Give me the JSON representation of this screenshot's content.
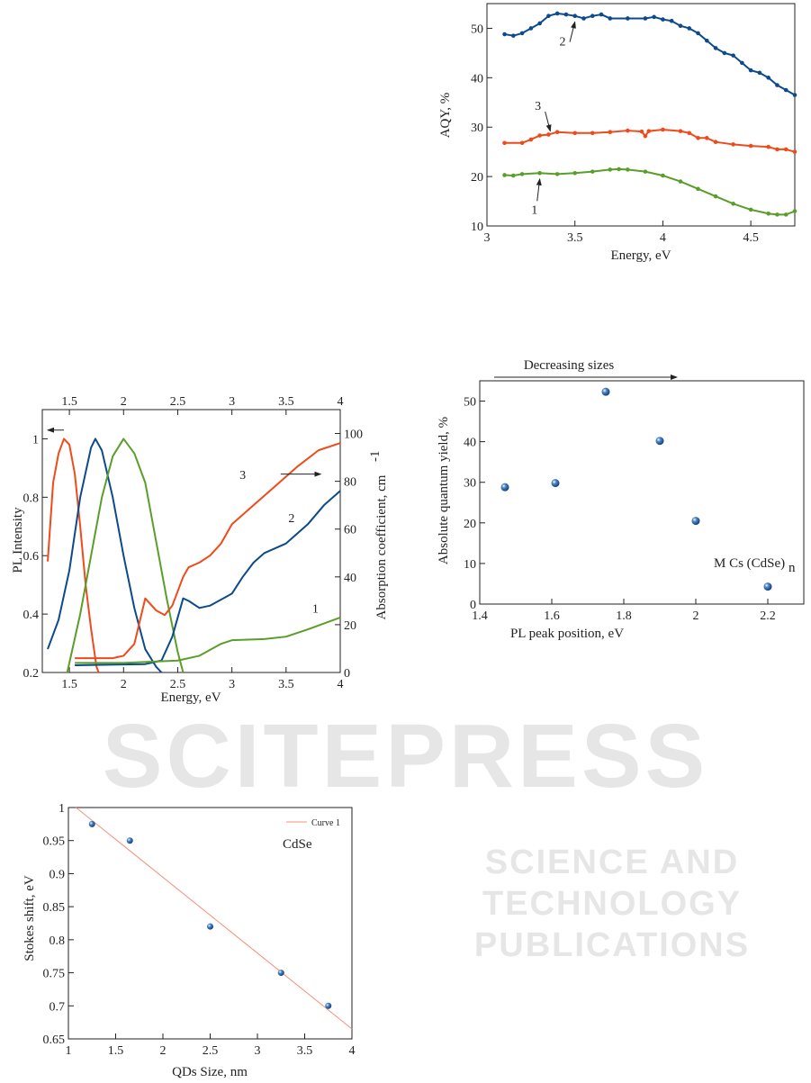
{
  "watermark": {
    "main": "SCITEPRESS",
    "sub": "SCIENCE AND TECHNOLOGY PUBLICATIONS"
  },
  "chart_data": [
    {
      "type": "line",
      "xlabel": "Energy, eV",
      "ylabel": "AQY, %",
      "xlim": [
        3,
        4.75
      ],
      "ylim": [
        10,
        55
      ],
      "xticks": [
        3,
        3.5,
        4,
        4.5
      ],
      "yticks": [
        10,
        20,
        30,
        40,
        50
      ],
      "series": [
        {
          "name": "2",
          "color": "#0d4a8c",
          "points": [
            [
              3.1,
              48.8
            ],
            [
              3.15,
              48.5
            ],
            [
              3.2,
              49
            ],
            [
              3.25,
              50
            ],
            [
              3.3,
              51
            ],
            [
              3.35,
              52.5
            ],
            [
              3.4,
              53
            ],
            [
              3.45,
              52.8
            ],
            [
              3.5,
              52.5
            ],
            [
              3.55,
              52
            ],
            [
              3.6,
              52.5
            ],
            [
              3.65,
              52.8
            ],
            [
              3.7,
              52
            ],
            [
              3.8,
              52
            ],
            [
              3.9,
              52
            ],
            [
              3.95,
              52.3
            ],
            [
              4.0,
              51.8
            ],
            [
              4.05,
              51.5
            ],
            [
              4.1,
              50.5
            ],
            [
              4.15,
              50
            ],
            [
              4.2,
              49
            ],
            [
              4.25,
              47.5
            ],
            [
              4.3,
              46
            ],
            [
              4.35,
              45
            ],
            [
              4.4,
              44.5
            ],
            [
              4.45,
              43
            ],
            [
              4.5,
              41.5
            ],
            [
              4.55,
              41
            ],
            [
              4.6,
              40
            ],
            [
              4.65,
              38.5
            ],
            [
              4.7,
              37.5
            ],
            [
              4.75,
              36.5
            ]
          ]
        },
        {
          "name": "3",
          "color": "#f04a1a",
          "points": [
            [
              3.1,
              26.8
            ],
            [
              3.2,
              26.8
            ],
            [
              3.25,
              27.5
            ],
            [
              3.3,
              28.3
            ],
            [
              3.35,
              28.5
            ],
            [
              3.4,
              29
            ],
            [
              3.5,
              28.8
            ],
            [
              3.6,
              28.8
            ],
            [
              3.7,
              29
            ],
            [
              3.8,
              29.3
            ],
            [
              3.88,
              29.1
            ],
            [
              3.9,
              28.2
            ],
            [
              3.92,
              29.2
            ],
            [
              4.0,
              29.5
            ],
            [
              4.1,
              29.2
            ],
            [
              4.15,
              28.8
            ],
            [
              4.2,
              27.8
            ],
            [
              4.25,
              27.8
            ],
            [
              4.3,
              27
            ],
            [
              4.4,
              26.5
            ],
            [
              4.5,
              26.2
            ],
            [
              4.6,
              26
            ],
            [
              4.65,
              25.5
            ],
            [
              4.7,
              25.5
            ],
            [
              4.75,
              25
            ]
          ]
        },
        {
          "name": "1",
          "color": "#5a9e2a",
          "points": [
            [
              3.1,
              20.3
            ],
            [
              3.15,
              20.2
            ],
            [
              3.2,
              20.5
            ],
            [
              3.3,
              20.7
            ],
            [
              3.4,
              20.5
            ],
            [
              3.5,
              20.7
            ],
            [
              3.6,
              21
            ],
            [
              3.7,
              21.4
            ],
            [
              3.75,
              21.5
            ],
            [
              3.8,
              21.4
            ],
            [
              3.9,
              21
            ],
            [
              4.0,
              20.2
            ],
            [
              4.1,
              19
            ],
            [
              4.2,
              17.5
            ],
            [
              4.3,
              16
            ],
            [
              4.4,
              14.5
            ],
            [
              4.5,
              13.3
            ],
            [
              4.6,
              12.5
            ],
            [
              4.65,
              12.3
            ],
            [
              4.7,
              12.3
            ],
            [
              4.75,
              13
            ]
          ]
        }
      ],
      "annotations": [
        {
          "text": "2",
          "at": [
            3.43,
            46.5
          ],
          "arrow_to": [
            3.5,
            51.3
          ]
        },
        {
          "text": "3",
          "at": [
            3.29,
            33.5
          ],
          "arrow_to": [
            3.36,
            29.2
          ]
        },
        {
          "text": "1",
          "at": [
            3.27,
            12.5
          ],
          "arrow_to": [
            3.3,
            19.5
          ]
        }
      ]
    },
    {
      "type": "line",
      "xlabel": "Energy, eV",
      "ylabel": "PL Intensity",
      "ylabel_right": "Absorption coefficient, cm",
      "ylabel_right_sup": "-1",
      "xlim": [
        1.25,
        4
      ],
      "ylim": [
        0.2,
        1.1
      ],
      "ylim_right": [
        0,
        110
      ],
      "xticks": [
        1.5,
        2,
        2.5,
        3,
        3.5,
        4
      ],
      "yticks": [
        0.2,
        0.4,
        0.6,
        0.8,
        1
      ],
      "yticks_right": [
        0,
        20,
        40,
        60,
        80,
        100
      ],
      "series": [
        {
          "name": "PL 3",
          "axis": "left",
          "color": "#f04a1a",
          "points": [
            [
              1.3,
              0.58
            ],
            [
              1.35,
              0.85
            ],
            [
              1.4,
              0.95
            ],
            [
              1.45,
              1.0
            ],
            [
              1.5,
              0.98
            ],
            [
              1.55,
              0.88
            ],
            [
              1.6,
              0.7
            ],
            [
              1.65,
              0.5
            ],
            [
              1.7,
              0.35
            ],
            [
              1.75,
              0.22
            ],
            [
              1.77,
              0.2
            ]
          ]
        },
        {
          "name": "PL 2",
          "axis": "left",
          "color": "#0d4a8c",
          "points": [
            [
              1.3,
              0.28
            ],
            [
              1.4,
              0.38
            ],
            [
              1.5,
              0.55
            ],
            [
              1.6,
              0.8
            ],
            [
              1.7,
              0.97
            ],
            [
              1.74,
              1.0
            ],
            [
              1.8,
              0.96
            ],
            [
              1.9,
              0.8
            ],
            [
              2.0,
              0.6
            ],
            [
              2.1,
              0.42
            ],
            [
              2.2,
              0.28
            ],
            [
              2.3,
              0.22
            ],
            [
              2.35,
              0.2
            ]
          ]
        },
        {
          "name": "PL 1",
          "axis": "left",
          "color": "#5a9e2a",
          "points": [
            [
              1.48,
              0.2
            ],
            [
              1.6,
              0.4
            ],
            [
              1.7,
              0.6
            ],
            [
              1.8,
              0.8
            ],
            [
              1.9,
              0.94
            ],
            [
              2.0,
              1.0
            ],
            [
              2.1,
              0.95
            ],
            [
              2.2,
              0.85
            ],
            [
              2.3,
              0.65
            ],
            [
              2.4,
              0.45
            ],
            [
              2.5,
              0.27
            ],
            [
              2.55,
              0.2
            ]
          ]
        },
        {
          "name": "Abs 3",
          "axis": "right",
          "color": "#f04a1a",
          "points": [
            [
              1.55,
              6
            ],
            [
              1.9,
              6
            ],
            [
              2.0,
              7
            ],
            [
              2.1,
              12
            ],
            [
              2.2,
              31
            ],
            [
              2.3,
              26
            ],
            [
              2.38,
              24
            ],
            [
              2.45,
              28
            ],
            [
              2.55,
              40
            ],
            [
              2.6,
              44
            ],
            [
              2.7,
              46
            ],
            [
              2.8,
              49
            ],
            [
              2.9,
              54
            ],
            [
              3.0,
              62
            ],
            [
              3.2,
              70
            ],
            [
              3.4,
              78
            ],
            [
              3.6,
              86
            ],
            [
              3.8,
              93
            ],
            [
              4.0,
              96
            ]
          ]
        },
        {
          "name": "Abs 2",
          "axis": "right",
          "color": "#0d4a8c",
          "points": [
            [
              1.55,
              3
            ],
            [
              2.2,
              3.5
            ],
            [
              2.35,
              5
            ],
            [
              2.45,
              15
            ],
            [
              2.55,
              31
            ],
            [
              2.6,
              30
            ],
            [
              2.7,
              27
            ],
            [
              2.8,
              28
            ],
            [
              3.0,
              33
            ],
            [
              3.1,
              40
            ],
            [
              3.2,
              46
            ],
            [
              3.3,
              50
            ],
            [
              3.5,
              54
            ],
            [
              3.7,
              62
            ],
            [
              3.85,
              70
            ],
            [
              4.0,
              76
            ]
          ]
        },
        {
          "name": "Abs 1",
          "axis": "right",
          "color": "#5a9e2a",
          "points": [
            [
              1.55,
              4
            ],
            [
              2.0,
              4
            ],
            [
              2.5,
              5
            ],
            [
              2.7,
              7
            ],
            [
              2.9,
              12
            ],
            [
              3.0,
              13.5
            ],
            [
              3.3,
              14
            ],
            [
              3.5,
              15
            ],
            [
              3.7,
              18
            ],
            [
              4.0,
              23
            ]
          ]
        }
      ],
      "labels": [
        "3",
        "2",
        "1"
      ]
    },
    {
      "type": "scatter",
      "title": "Decreasing sizes",
      "xlabel": "PL peak position, eV",
      "ylabel": "Absolute quantum yield, %",
      "annotation": "M Cs (CdSe)",
      "annotation_sub": "n",
      "xlim": [
        1.4,
        2.3
      ],
      "ylim": [
        0,
        55
      ],
      "xticks": [
        1.4,
        1.6,
        1.8,
        2,
        2.2
      ],
      "yticks": [
        0,
        10,
        20,
        30,
        40,
        50
      ],
      "points": [
        [
          1.47,
          28.8
        ],
        [
          1.61,
          29.8
        ],
        [
          1.75,
          52.3
        ],
        [
          1.9,
          40.2
        ],
        [
          2.0,
          20.5
        ],
        [
          2.2,
          4.3
        ]
      ],
      "color": "#1d5fa8"
    },
    {
      "type": "scatter",
      "xlabel": "QDs Size, nm",
      "ylabel": "Stokes shift, eV",
      "legend": "Curve 1",
      "annotation": "CdSe",
      "xlim": [
        1,
        4
      ],
      "ylim": [
        0.65,
        1
      ],
      "xticks": [
        1,
        1.5,
        2,
        2.5,
        3,
        3.5,
        4
      ],
      "yticks": [
        0.65,
        0.7,
        0.75,
        0.8,
        0.85,
        0.9,
        0.95,
        1
      ],
      "points": [
        [
          1.25,
          0.975
        ],
        [
          1.65,
          0.95
        ],
        [
          2.5,
          0.82
        ],
        [
          3.25,
          0.75
        ],
        [
          3.75,
          0.7
        ]
      ],
      "fit_line": [
        [
          1.08,
          1.0
        ],
        [
          4.0,
          0.665
        ]
      ],
      "color": "#1d5fa8",
      "fit_color": "#f4907a"
    }
  ]
}
